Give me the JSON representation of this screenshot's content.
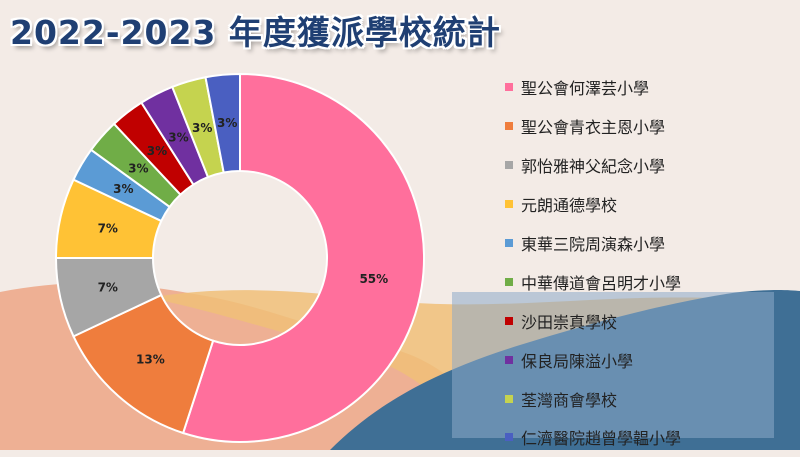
{
  "title": "2022-2023 年度獲派學校統計",
  "colors": {
    "background": "#f3ebe6",
    "wave_peach": "#eeb094",
    "wave_sand": "#f0c078",
    "wave_blue": "#3f6f95",
    "title": "#1f3f73"
  },
  "chart_data": {
    "type": "pie",
    "style": "donut",
    "title": "2022-2023 年度獲派學校統計",
    "legend_position": "right",
    "categories": [
      "聖公會何澤芸小學",
      "聖公會青衣主恩小學",
      "郭怡雅神父紀念小學",
      "元朗通德學校",
      "東華三院周演森小學",
      "中華傳道會呂明才小學",
      "沙田崇真學校",
      "保良局陳溢小學",
      "荃灣商會學校",
      "仁濟醫院趙曾學韞小學"
    ],
    "values": [
      55,
      13,
      7,
      7,
      3,
      3,
      3,
      3,
      3,
      3
    ],
    "labels": [
      "55%",
      "13%",
      "7%",
      "7%",
      "3%",
      "3%",
      "3%",
      "3%",
      "3%",
      "3%"
    ],
    "colors": [
      "#ff6f9c",
      "#ef7d3d",
      "#a6a6a6",
      "#ffc235",
      "#5b9bd5",
      "#70ad47",
      "#c00000",
      "#7030a0",
      "#c5d34f",
      "#4a5fc1"
    ]
  }
}
